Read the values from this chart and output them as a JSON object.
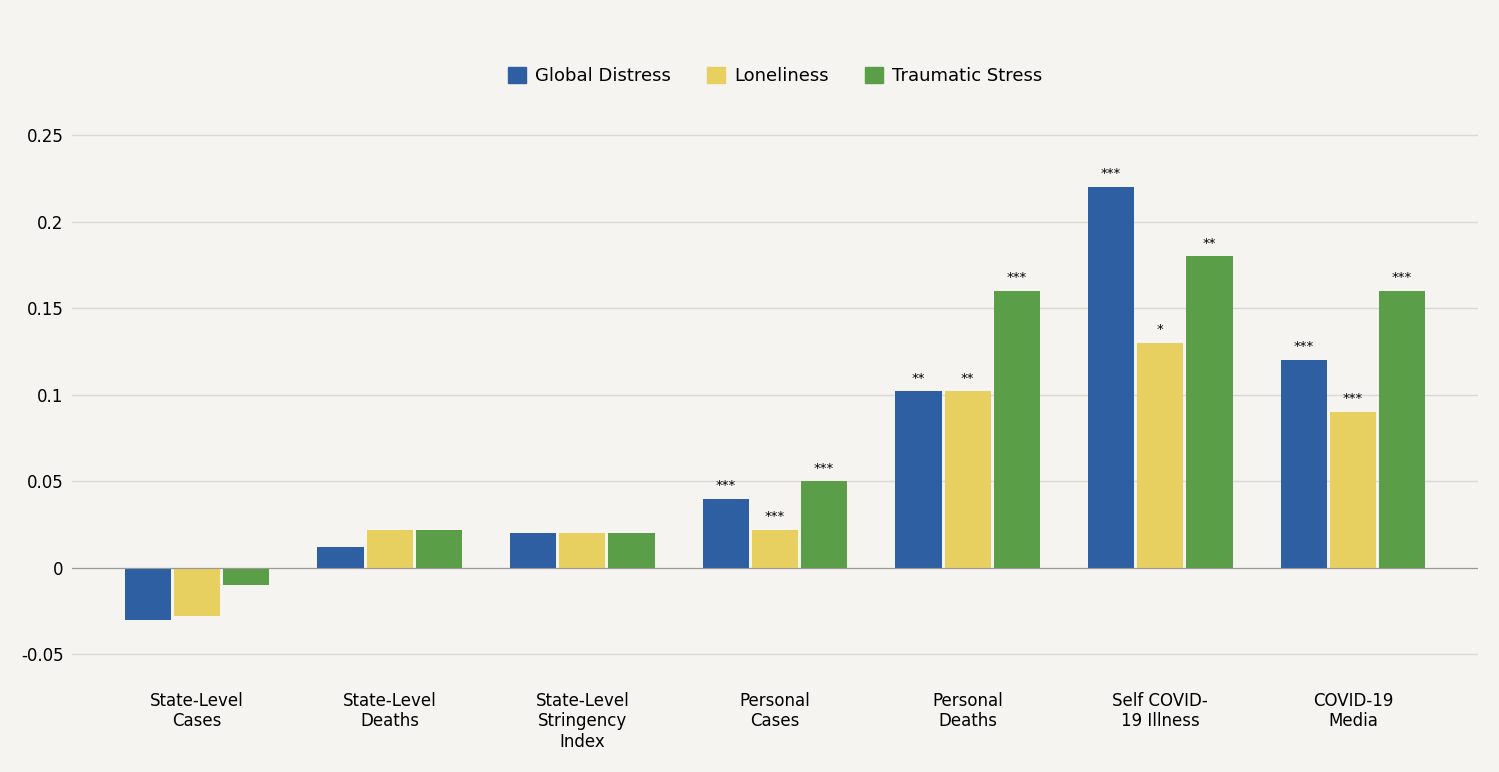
{
  "categories": [
    "State-Level\nCases",
    "State-Level\nDeaths",
    "State-Level\nStringency\nIndex",
    "Personal\nCases",
    "Personal\nDeaths",
    "Self COVID-\n19 Illness",
    "COVID-19\nMedia"
  ],
  "global_distress": [
    -0.03,
    0.012,
    0.02,
    0.04,
    0.102,
    0.22,
    0.12
  ],
  "loneliness": [
    -0.028,
    0.022,
    0.02,
    0.022,
    0.102,
    0.13,
    0.09
  ],
  "traumatic_stress": [
    -0.01,
    0.022,
    0.02,
    0.05,
    0.16,
    0.18,
    0.16
  ],
  "annotations_gd": [
    "",
    "",
    "",
    "***",
    "**",
    "***",
    "***"
  ],
  "annotations_lon": [
    "",
    "",
    "",
    "***",
    "**",
    "*",
    "***"
  ],
  "annotations_ts": [
    "",
    "",
    "",
    "***",
    "***",
    "**",
    "***"
  ],
  "colors": {
    "global_distress": "#2e5fa3",
    "loneliness": "#e8d060",
    "traumatic_stress": "#5a9e47"
  },
  "ylim": [
    -0.065,
    0.275
  ],
  "yticks": [
    -0.05,
    0,
    0.05,
    0.1,
    0.15,
    0.2,
    0.25
  ],
  "ytick_labels": [
    "-0.05",
    "0",
    "0.05",
    "0.1",
    "0.15",
    "0.2",
    "0.25"
  ],
  "legend_labels": [
    "Global Distress",
    "Loneliness",
    "Traumatic Stress"
  ],
  "background_color": "#f5f4f0",
  "grid_color": "#d8d8d8",
  "bar_width": 0.24,
  "bar_gap": 0.015
}
